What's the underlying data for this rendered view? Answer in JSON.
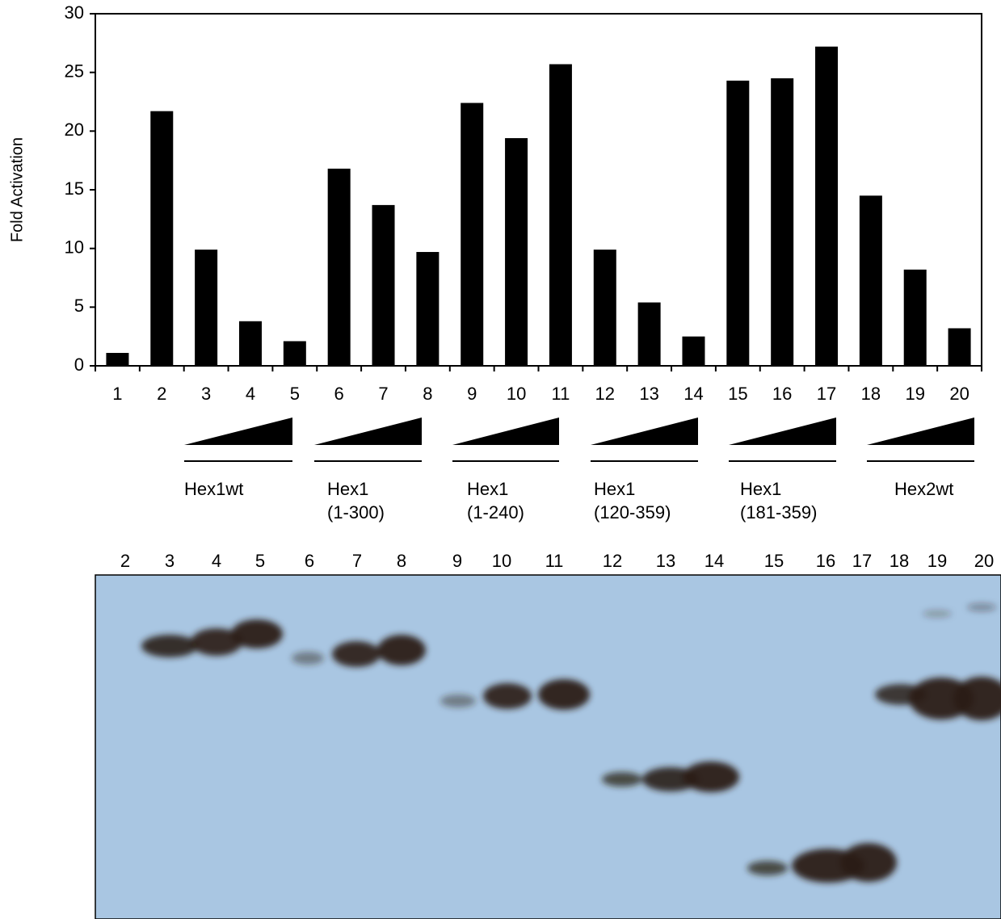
{
  "chart_data": {
    "type": "bar",
    "y_label": "Fold Activation",
    "categories": [
      "1",
      "2",
      "3",
      "4",
      "5",
      "6",
      "7",
      "8",
      "9",
      "10",
      "11",
      "12",
      "13",
      "14",
      "15",
      "16",
      "17",
      "18",
      "19",
      "20"
    ],
    "values": [
      1.1,
      21.7,
      9.9,
      3.8,
      2.1,
      16.8,
      13.7,
      9.7,
      22.4,
      19.4,
      25.7,
      9.9,
      5.4,
      2.5,
      24.3,
      24.5,
      27.2,
      14.5,
      8.2,
      3.2
    ],
    "color": "#000000",
    "ylim": [
      0,
      30
    ],
    "yticks": [
      0,
      5,
      10,
      15,
      20,
      25,
      30
    ],
    "grid": false,
    "groups": [
      {
        "label": [
          "Hex1wt"
        ]
      },
      {
        "label": [
          "Hex1",
          "(1-300)"
        ]
      },
      {
        "label": [
          "Hex1",
          "(1-240)"
        ]
      },
      {
        "label": [
          "Hex1",
          "(120-359)"
        ]
      },
      {
        "label": [
          "Hex1",
          "(181-359)"
        ]
      },
      {
        "label": [
          "Hex2wt"
        ]
      }
    ]
  },
  "blot": {
    "lanes": [
      "2",
      "3",
      "4",
      "5",
      "6",
      "7",
      "8",
      "9",
      "10",
      "11",
      "12",
      "13",
      "14",
      "15",
      "16",
      "17",
      "18",
      "19",
      "20"
    ]
  }
}
